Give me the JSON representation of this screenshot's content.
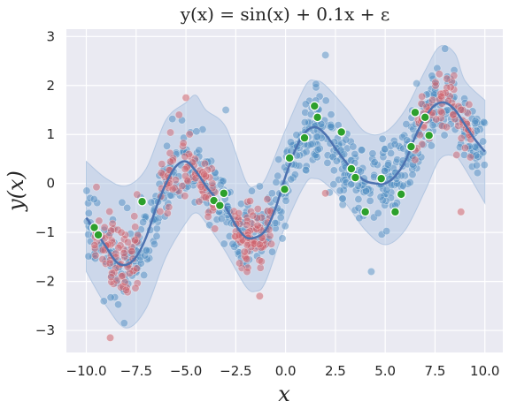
{
  "chart_data": {
    "type": "scatter",
    "title": "y(x) = sin(x) + 0.1x + ε",
    "xlabel": "x",
    "ylabel": "y(x)",
    "xlim": [
      -11.0,
      10.9
    ],
    "ylim": [
      -3.45,
      3.15
    ],
    "xticks": [
      -10.0,
      -7.5,
      -5.0,
      -2.5,
      0.0,
      2.5,
      5.0,
      7.5,
      10.0
    ],
    "xtick_labels": [
      "−10.0",
      "−7.5",
      "−5.0",
      "−2.5",
      "0.0",
      "2.5",
      "5.0",
      "7.5",
      "10.0"
    ],
    "yticks": [
      -3,
      -2,
      -1,
      0,
      1,
      2,
      3
    ],
    "ytick_labels": [
      "−3",
      "−2",
      "−1",
      "0",
      "1",
      "2",
      "3"
    ],
    "grid": true,
    "background": "#eaeaf2",
    "colors": {
      "blue_points": "#4f8ec2",
      "red_points": "#d0626c",
      "green_points": "#2ca02c",
      "line": "#4c72b0",
      "band": "#a9c1df"
    },
    "curve": {
      "x": [
        -10.0,
        -9.5,
        -9.0,
        -8.5,
        -8.0,
        -7.5,
        -7.0,
        -6.5,
        -6.0,
        -5.5,
        -5.0,
        -4.5,
        -4.0,
        -3.5,
        -3.0,
        -2.5,
        -2.0,
        -1.5,
        -1.0,
        -0.5,
        0.0,
        0.5,
        1.0,
        1.5,
        2.0,
        2.5,
        3.0,
        3.5,
        4.0,
        4.5,
        5.0,
        5.5,
        6.0,
        6.5,
        7.0,
        7.5,
        8.0,
        8.5,
        9.0,
        9.5,
        10.0
      ],
      "y": [
        -0.7,
        -1.0,
        -1.3,
        -1.6,
        -1.66,
        -1.5,
        -1.1,
        -0.5,
        0.0,
        0.35,
        0.45,
        0.25,
        -0.05,
        -0.3,
        -0.5,
        -0.85,
        -1.1,
        -1.1,
        -0.95,
        -0.5,
        0.15,
        0.7,
        1.05,
        1.15,
        1.0,
        0.72,
        0.45,
        0.22,
        0.05,
        0.0,
        0.0,
        0.15,
        0.45,
        0.95,
        1.35,
        1.6,
        1.65,
        1.5,
        1.2,
        0.9,
        0.65
      ]
    },
    "band": {
      "x": [
        -10.0,
        -9.0,
        -8.0,
        -7.0,
        -6.0,
        -5.0,
        -4.5,
        -4.0,
        -3.0,
        -2.0,
        -1.5,
        -1.0,
        0.0,
        1.0,
        1.5,
        2.0,
        3.0,
        4.0,
        5.0,
        6.0,
        7.0,
        7.75,
        8.5,
        9.0,
        10.0
      ],
      "upper": [
        0.45,
        0.1,
        -0.05,
        0.3,
        1.3,
        1.65,
        1.8,
        1.5,
        1.15,
        0.05,
        -0.05,
        0.1,
        1.1,
        2.0,
        2.1,
        2.0,
        1.55,
        1.05,
        1.05,
        1.5,
        2.3,
        2.8,
        2.65,
        2.1,
        1.7
      ],
      "lower": [
        -1.8,
        -2.5,
        -2.95,
        -2.55,
        -1.5,
        -0.8,
        -0.6,
        -0.8,
        -1.4,
        -2.1,
        -2.2,
        -2.0,
        -0.85,
        0.0,
        0.1,
        0.0,
        -0.4,
        -0.95,
        -1.25,
        -0.95,
        -0.15,
        0.5,
        0.55,
        0.3,
        -0.4
      ]
    },
    "scatter_red": {
      "count": 320,
      "spread": 0.33,
      "seed": 7,
      "regions": [
        [
          -9.6,
          -7.4
        ],
        [
          -6.3,
          -3.5
        ],
        [
          -2.6,
          -0.7
        ],
        [
          6.5,
          9.3
        ]
      ],
      "outliers": [
        [
          -8.8,
          -3.15
        ],
        [
          -5.0,
          1.75
        ],
        [
          -1.3,
          -2.3
        ],
        [
          8.8,
          -0.58
        ],
        [
          2.0,
          -0.2
        ]
      ]
    },
    "scatter_blue": {
      "count": 780,
      "spread": 0.38,
      "seed": 21,
      "outliers": [
        [
          2.0,
          2.62
        ],
        [
          8.0,
          2.75
        ],
        [
          -8.1,
          -2.85
        ],
        [
          4.3,
          -1.8
        ],
        [
          -3.0,
          1.5
        ]
      ]
    },
    "scatter_green": {
      "x": [
        -9.6,
        -9.4,
        -7.2,
        -3.6,
        -3.3,
        -3.1,
        -0.05,
        0.2,
        0.95,
        1.45,
        1.6,
        2.8,
        3.3,
        3.5,
        4.0,
        4.8,
        5.5,
        5.8,
        6.3,
        6.5,
        7.0,
        7.2
      ],
      "y": [
        -0.9,
        -1.05,
        -0.37,
        -0.35,
        -0.45,
        -0.2,
        -0.12,
        0.52,
        0.93,
        1.58,
        1.35,
        1.05,
        0.3,
        0.12,
        -0.58,
        0.1,
        -0.58,
        -0.22,
        0.75,
        1.45,
        1.35,
        0.98
      ]
    }
  }
}
